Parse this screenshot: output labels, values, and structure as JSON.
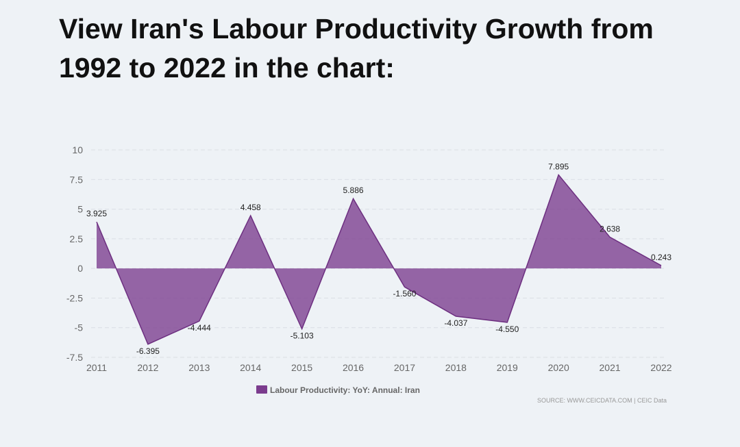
{
  "page": {
    "title": "View Iran's Labour Productivity Growth from 1992 to 2022 in the chart:"
  },
  "chart_data": {
    "type": "area",
    "title": "View Iran's Labour Productivity Growth from 1992 to 2022 in the chart:",
    "xlabel": "",
    "ylabel": "",
    "categories": [
      "2011",
      "2012",
      "2013",
      "2014",
      "2015",
      "2016",
      "2017",
      "2018",
      "2019",
      "2020",
      "2021",
      "2022"
    ],
    "series": [
      {
        "name": "Labour Productivity: YoY: Annual: Iran",
        "values": [
          3.925,
          -6.395,
          -4.444,
          4.458,
          -5.103,
          5.886,
          -1.56,
          -4.037,
          -4.55,
          7.895,
          2.638,
          0.243
        ],
        "labels": [
          "3.925",
          "-6.395",
          "-4.444",
          "4.458",
          "-5.103",
          "5.886",
          "-1.560",
          "-4.037",
          "-4.550",
          "7.895",
          "2.638",
          "0.243"
        ]
      }
    ],
    "ylim": [
      -7.5,
      10
    ],
    "yticks": [
      10,
      7.5,
      5,
      2.5,
      0,
      -2.5,
      -5,
      -7.5
    ],
    "ytick_labels": [
      "10",
      "7.5",
      "5",
      "2.5",
      "0",
      "-2.5",
      "-5",
      "-7.5"
    ],
    "grid": true,
    "legend_position": "bottom-center",
    "source": "SOURCE: WWW.CEICDATA.COM | CEIC Data",
    "colors": {
      "fill": "#7b3c8e",
      "stroke": "#6d2f80",
      "grid": "#d9dde3"
    }
  }
}
